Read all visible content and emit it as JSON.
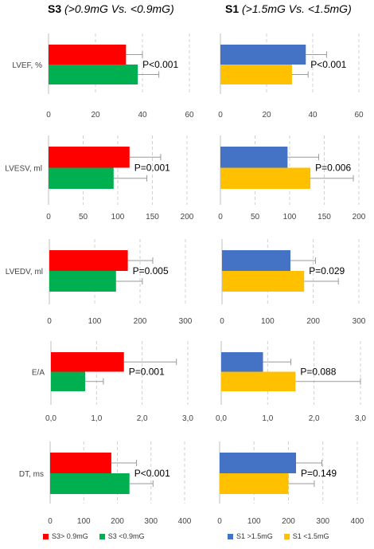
{
  "header": {
    "left": {
      "bold": "S3",
      "italic": "(>0.9mG Vs. <0.9mG)"
    },
    "right": {
      "bold": "S1",
      "italic": "(>1.5mG Vs. <1.5mG)"
    }
  },
  "colors": {
    "red": "#ff0000",
    "green": "#00b050",
    "blue": "#4472c4",
    "gold": "#ffc000",
    "error": "#9a9a9a",
    "grid": "#d0d0d0",
    "axis": "#bfbfbf"
  },
  "legend": {
    "left": [
      {
        "label": "S3> 0.9mG",
        "color": "#ff0000"
      },
      {
        "label": "S3 <0.9mG",
        "color": "#00b050"
      }
    ],
    "right": [
      {
        "label": "S1 >1.5mG",
        "color": "#4472c4"
      },
      {
        "label": "S1 <1.5mG",
        "color": "#ffc000"
      }
    ]
  },
  "chart_data": [
    {
      "type": "bar",
      "orientation": "horizontal",
      "ylabel": "LVEF, %",
      "xlim": [
        0,
        60
      ],
      "ticks": [
        "0",
        "20",
        "40",
        "60"
      ],
      "series": [
        {
          "name": "S3> 0.9mG",
          "color": "#ff0000",
          "value": 33,
          "error": 7
        },
        {
          "name": "S3 <0.9mG",
          "color": "#00b050",
          "value": 38,
          "error": 9
        }
      ],
      "annotation": "P<0.001"
    },
    {
      "type": "bar",
      "orientation": "horizontal",
      "ylabel": "",
      "xlim": [
        0,
        60
      ],
      "ticks": [
        "0",
        "20",
        "40",
        "60"
      ],
      "series": [
        {
          "name": "S1 >1.5mG",
          "color": "#4472c4",
          "value": 37,
          "error": 9
        },
        {
          "name": "S1 <1.5mG",
          "color": "#ffc000",
          "value": 31,
          "error": 7
        }
      ],
      "annotation": "P<0.001"
    },
    {
      "type": "bar",
      "orientation": "horizontal",
      "ylabel": "LVESV, ml",
      "xlim": [
        0,
        200
      ],
      "ticks": [
        "0",
        "50",
        "100",
        "150",
        "200"
      ],
      "series": [
        {
          "name": "S3> 0.9mG",
          "color": "#ff0000",
          "value": 117,
          "error": 45
        },
        {
          "name": "S3 <0.9mG",
          "color": "#00b050",
          "value": 94,
          "error": 48
        }
      ],
      "annotation": "P=0.001"
    },
    {
      "type": "bar",
      "orientation": "horizontal",
      "ylabel": "",
      "xlim": [
        0,
        200
      ],
      "ticks": [
        "0",
        "50",
        "100",
        "150",
        "200"
      ],
      "series": [
        {
          "name": "S1 >1.5mG",
          "color": "#4472c4",
          "value": 97,
          "error": 45
        },
        {
          "name": "S1 <1.5mG",
          "color": "#ffc000",
          "value": 130,
          "error": 62
        }
      ],
      "annotation": "P=0.006"
    },
    {
      "type": "bar",
      "orientation": "horizontal",
      "ylabel": "LVEDV, ml",
      "xlim": [
        0,
        300
      ],
      "ticks": [
        "0",
        "100",
        "200",
        "300"
      ],
      "series": [
        {
          "name": "S3> 0.9mG",
          "color": "#ff0000",
          "value": 173,
          "error": 55
        },
        {
          "name": "S3 <0.9mG",
          "color": "#00b050",
          "value": 147,
          "error": 58
        }
      ],
      "annotation": "P=0.005"
    },
    {
      "type": "bar",
      "orientation": "horizontal",
      "ylabel": "",
      "xlim": [
        0,
        300
      ],
      "ticks": [
        "0",
        "100",
        "200",
        "300"
      ],
      "series": [
        {
          "name": "S1 >1.5mG",
          "color": "#4472c4",
          "value": 150,
          "error": 55
        },
        {
          "name": "S1 <1.5mG",
          "color": "#ffc000",
          "value": 180,
          "error": 75
        }
      ],
      "annotation": "P=0.029"
    },
    {
      "type": "bar",
      "orientation": "horizontal",
      "ylabel": "E/A",
      "xlim": [
        0,
        3
      ],
      "ticks": [
        "0,0",
        "1,0",
        "2,0",
        "3,0"
      ],
      "series": [
        {
          "name": "S3> 0.9mG",
          "color": "#ff0000",
          "value": 1.6,
          "error": 1.15
        },
        {
          "name": "S3 <0.9mG",
          "color": "#00b050",
          "value": 0.75,
          "error": 0.4
        }
      ],
      "annotation": "P=0.001"
    },
    {
      "type": "bar",
      "orientation": "horizontal",
      "ylabel": "",
      "xlim": [
        0,
        3
      ],
      "ticks": [
        "0,0",
        "1,0",
        "2,0",
        "3,0"
      ],
      "series": [
        {
          "name": "S1 >1.5mG",
          "color": "#4472c4",
          "value": 0.9,
          "error": 0.6
        },
        {
          "name": "S1 <1.5mG",
          "color": "#ffc000",
          "value": 1.6,
          "error": 1.4
        }
      ],
      "annotation": "P=0.088"
    },
    {
      "type": "bar",
      "orientation": "horizontal",
      "ylabel": "DT, ms",
      "xlim": [
        0,
        400
      ],
      "ticks": [
        "0",
        "100",
        "200",
        "300",
        "400"
      ],
      "series": [
        {
          "name": "S3> 0.9mG",
          "color": "#ff0000",
          "value": 182,
          "error": 75
        },
        {
          "name": "S3 <0.9mG",
          "color": "#00b050",
          "value": 236,
          "error": 70
        }
      ],
      "annotation": "P<0.001"
    },
    {
      "type": "bar",
      "orientation": "horizontal",
      "ylabel": "",
      "xlim": [
        0,
        400
      ],
      "ticks": [
        "0",
        "100",
        "200",
        "300",
        "400"
      ],
      "series": [
        {
          "name": "S1 >1.5mG",
          "color": "#4472c4",
          "value": 222,
          "error": 75
        },
        {
          "name": "S1 <1.5mG",
          "color": "#ffc000",
          "value": 200,
          "error": 75
        }
      ],
      "annotation": "P=0.149"
    }
  ]
}
